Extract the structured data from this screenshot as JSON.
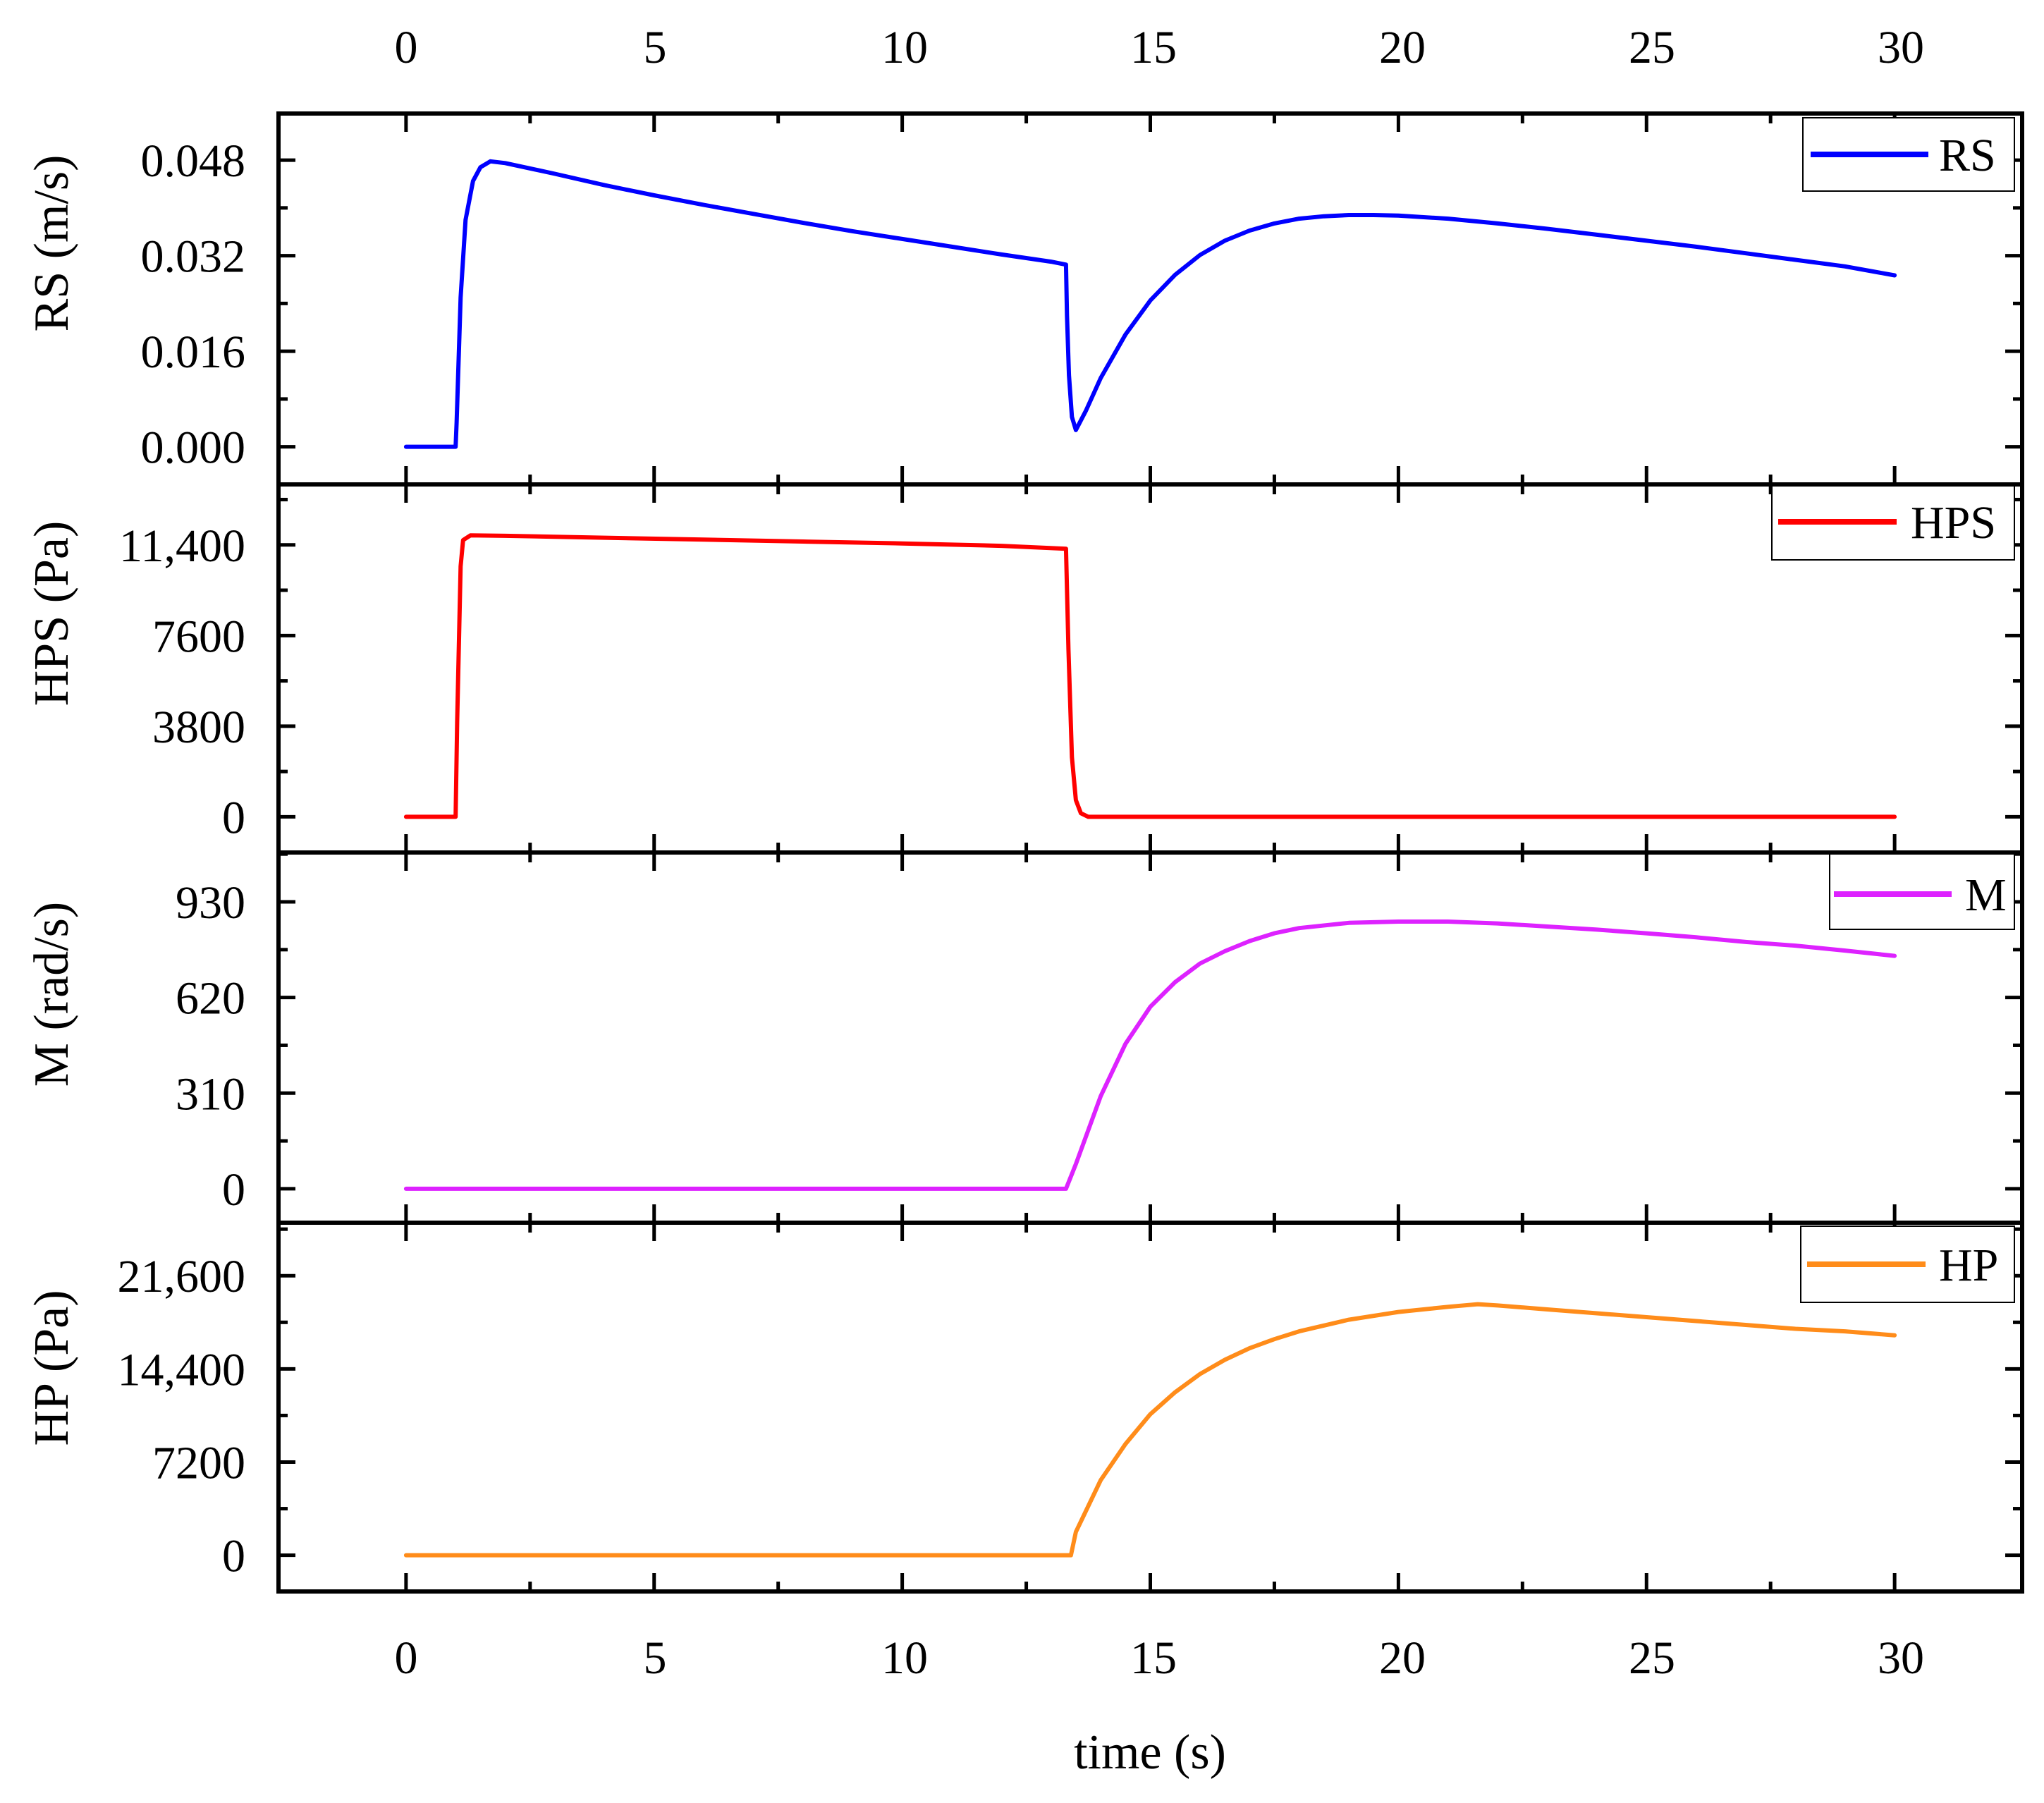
{
  "chart_data": {
    "type": "line",
    "layout": "stacked",
    "xlabel": "time (s)",
    "xlim": [
      -2.57,
      32.57
    ],
    "xticks": [
      0,
      5,
      10,
      15,
      20,
      25,
      30
    ],
    "xtick_labels": [
      "0",
      "5",
      "10",
      "15",
      "20",
      "25",
      "30"
    ],
    "panels": [
      {
        "id": "rs",
        "ylabel": "RS (m/s)",
        "ylim": [
          -0.0063,
          0.0558
        ],
        "yticks": [
          0.0,
          0.016,
          0.032,
          0.048
        ],
        "ytick_labels": [
          "0.000",
          "0.016",
          "0.032",
          "0.048"
        ],
        "series": {
          "name": "RS",
          "color": "#0000ff",
          "x": [
            0,
            1.0,
            1.02,
            1.1,
            1.2,
            1.35,
            1.5,
            1.7,
            2,
            3,
            4,
            5,
            6,
            7,
            8,
            9,
            10,
            11,
            12,
            13,
            13.3,
            13.32,
            13.36,
            13.42,
            13.5,
            13.7,
            14,
            14.5,
            15,
            15.5,
            16,
            16.5,
            17,
            17.5,
            18,
            18.5,
            19,
            19.5,
            20,
            21,
            22,
            23,
            24,
            25,
            26,
            27,
            28,
            29,
            30
          ],
          "y": [
            0,
            0,
            0.004,
            0.025,
            0.038,
            0.0445,
            0.0468,
            0.0478,
            0.0475,
            0.0457,
            0.0438,
            0.0421,
            0.0405,
            0.039,
            0.0375,
            0.0361,
            0.0348,
            0.0335,
            0.0322,
            0.031,
            0.0305,
            0.022,
            0.012,
            0.005,
            0.0028,
            0.006,
            0.0115,
            0.0188,
            0.0245,
            0.0288,
            0.0321,
            0.0345,
            0.0362,
            0.0374,
            0.0382,
            0.0386,
            0.0388,
            0.0388,
            0.0387,
            0.0382,
            0.0374,
            0.0365,
            0.0355,
            0.0345,
            0.0335,
            0.0324,
            0.0313,
            0.0302,
            0.0287
          ]
        }
      },
      {
        "id": "hps",
        "ylabel": "HPS (Pa)",
        "ylim": [
          -1495,
          13935
        ],
        "yticks": [
          0,
          3800,
          7600,
          11400
        ],
        "ytick_labels": [
          "0",
          "3800",
          "7600",
          "11,400"
        ],
        "series": {
          "name": "HPS",
          "color": "#ff0000",
          "x": [
            0,
            1.0,
            1.03,
            1.1,
            1.15,
            1.3,
            2,
            4,
            6,
            8,
            10,
            12,
            13.3,
            13.35,
            13.42,
            13.5,
            13.6,
            13.75,
            14,
            20,
            25,
            30
          ],
          "y": [
            0,
            0,
            4000,
            10500,
            11600,
            11800,
            11780,
            11700,
            11620,
            11540,
            11460,
            11360,
            11240,
            7000,
            2500,
            700,
            150,
            0,
            0,
            0,
            0,
            0
          ]
        }
      },
      {
        "id": "m",
        "ylabel": "M (rad/s)",
        "ylim": [
          -110,
          1090
        ],
        "yticks": [
          0,
          310,
          620,
          930
        ],
        "ytick_labels": [
          "0",
          "310",
          "620",
          "930"
        ],
        "series": {
          "name": "M",
          "color": "#dd22ff",
          "x": [
            0,
            13.3,
            13.5,
            14,
            14.5,
            15,
            15.5,
            16,
            16.5,
            17,
            17.5,
            18,
            19,
            20,
            21,
            22,
            23,
            24,
            25,
            26,
            27,
            28,
            29,
            30
          ],
          "y": [
            0,
            0,
            80,
            300,
            470,
            590,
            670,
            730,
            770,
            803,
            828,
            845,
            862,
            866,
            866,
            860,
            850,
            840,
            828,
            815,
            800,
            788,
            772,
            755
          ]
        }
      },
      {
        "id": "hp",
        "ylabel": "HP (Pa)",
        "ylim": [
          -2800,
          25700
        ],
        "yticks": [
          0,
          7200,
          14400,
          21600
        ],
        "ytick_labels": [
          "0",
          "7200",
          "14,400",
          "21,600"
        ],
        "series": {
          "name": "HP",
          "color": "#ff8c1a",
          "x": [
            0,
            13.4,
            13.5,
            14,
            14.5,
            15,
            15.5,
            16,
            16.5,
            17,
            17.5,
            18,
            19,
            20,
            21,
            21.6,
            22,
            23,
            24,
            25,
            26,
            27,
            28,
            29,
            30
          ],
          "y": [
            0,
            0,
            1800,
            5800,
            8600,
            10900,
            12600,
            14000,
            15100,
            16000,
            16700,
            17300,
            18200,
            18800,
            19200,
            19400,
            19300,
            19000,
            18700,
            18400,
            18100,
            17800,
            17500,
            17300,
            17000
          ]
        }
      }
    ]
  }
}
